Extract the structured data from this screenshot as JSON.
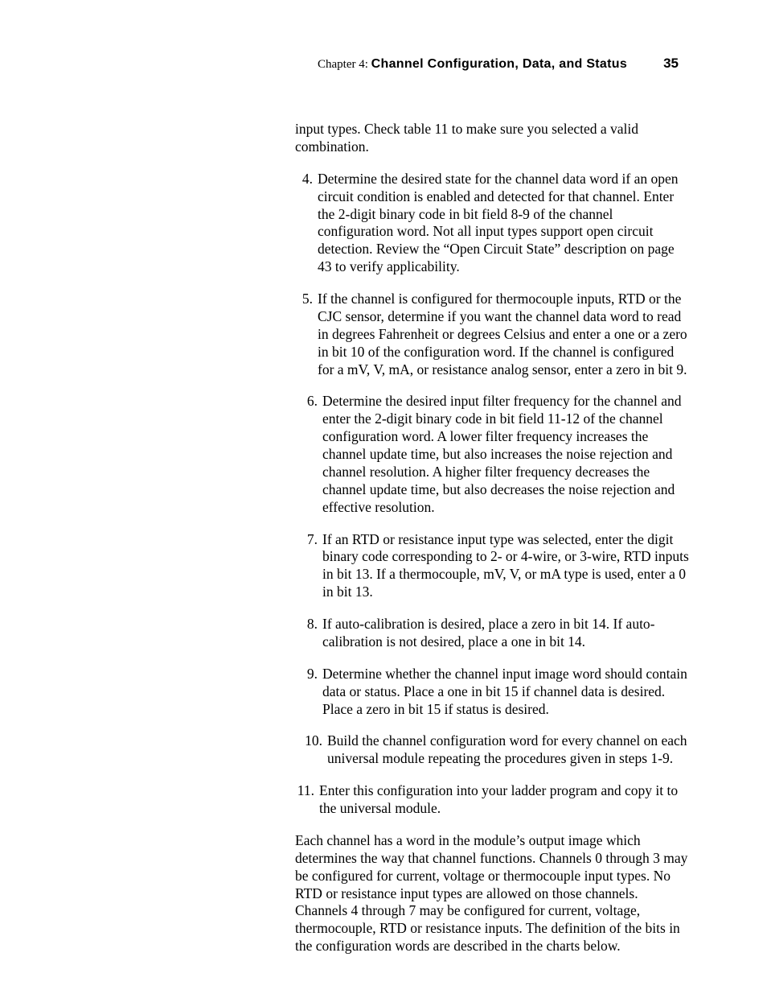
{
  "header": {
    "chapter_label": "Chapter 4: ",
    "chapter_title": "Channel Configuration, Data, and Status",
    "page_number": "35"
  },
  "continuation": "input types.  Check table 11 to make sure you selected a valid combination.",
  "items": [
    {
      "n": "4.",
      "group": "a",
      "nw": "w1",
      "text": "Determine the desired state for the channel data word if an open circuit condition is enabled and detected for that channel.  Enter the 2-digit binary code in bit field 8-9 of the channel configuration word.  Not all input types support open circuit detection.  Review the “Open Circuit State” description on page 43 to verify applicability."
    },
    {
      "n": "5.",
      "group": "a",
      "nw": "w1",
      "text": "If the channel is configured for thermocouple inputs, RTD or the CJC sensor, determine if you want the channel data word to read in degrees Fahrenheit or degrees Celsius and enter a one or a zero in bit 10 of the configuration word.  If the channel is configured for a mV, V, mA, or resistance analog sensor, enter a zero in bit 9."
    },
    {
      "n": "6.",
      "group": "b",
      "nw": "w1",
      "text": "Determine the desired input filter frequency for the channel and enter the 2-digit binary code in bit field 11-12 of the channel configuration word.  A lower filter frequency increases the channel update time, but also increases the noise rejection and channel resolution.  A higher filter frequency decreases the channel update time, but also decreases the noise rejection and effective resolution."
    },
    {
      "n": "7.",
      "group": "b",
      "nw": "w1",
      "text": "If an RTD or resistance input type was selected, enter the digit binary code corresponding to 2- or 4-wire, or 3-wire, RTD inputs in bit 13.  If a thermocouple, mV, V, or mA type is used, enter a 0 in bit 13."
    },
    {
      "n": "8.",
      "group": "b",
      "nw": "w1",
      "text": "If auto-calibration is desired, place a zero in bit 14.  If auto-calibration is not desired, place a one in bit 14."
    },
    {
      "n": "9.",
      "group": "b",
      "nw": "w1",
      "text": "Determine whether the channel input image word should contain data or status.  Place a one in bit 15 if channel data is desired.  Place a zero in bit 15 if status is desired."
    },
    {
      "n": "10.",
      "group": "b",
      "nw": "w2",
      "text": "Build the channel configuration word for every channel on each universal module repeating the procedures given in steps 1‑9."
    },
    {
      "n": "11.",
      "group": "c",
      "nw": "w2",
      "text": "Enter this configuration into your ladder program and copy it to the universal module."
    }
  ],
  "final": "Each channel has a word in the module’s output image which determines the way that channel functions.  Channels 0 through 3 may be configured for current, voltage or thermocouple input types.  No RTD or resistance input types are allowed on those channels.  Channels 4 through 7 may be configured for current, voltage, thermocouple, RTD or resistance inputs.  The definition of the bits in the configuration words are described in the charts below."
}
